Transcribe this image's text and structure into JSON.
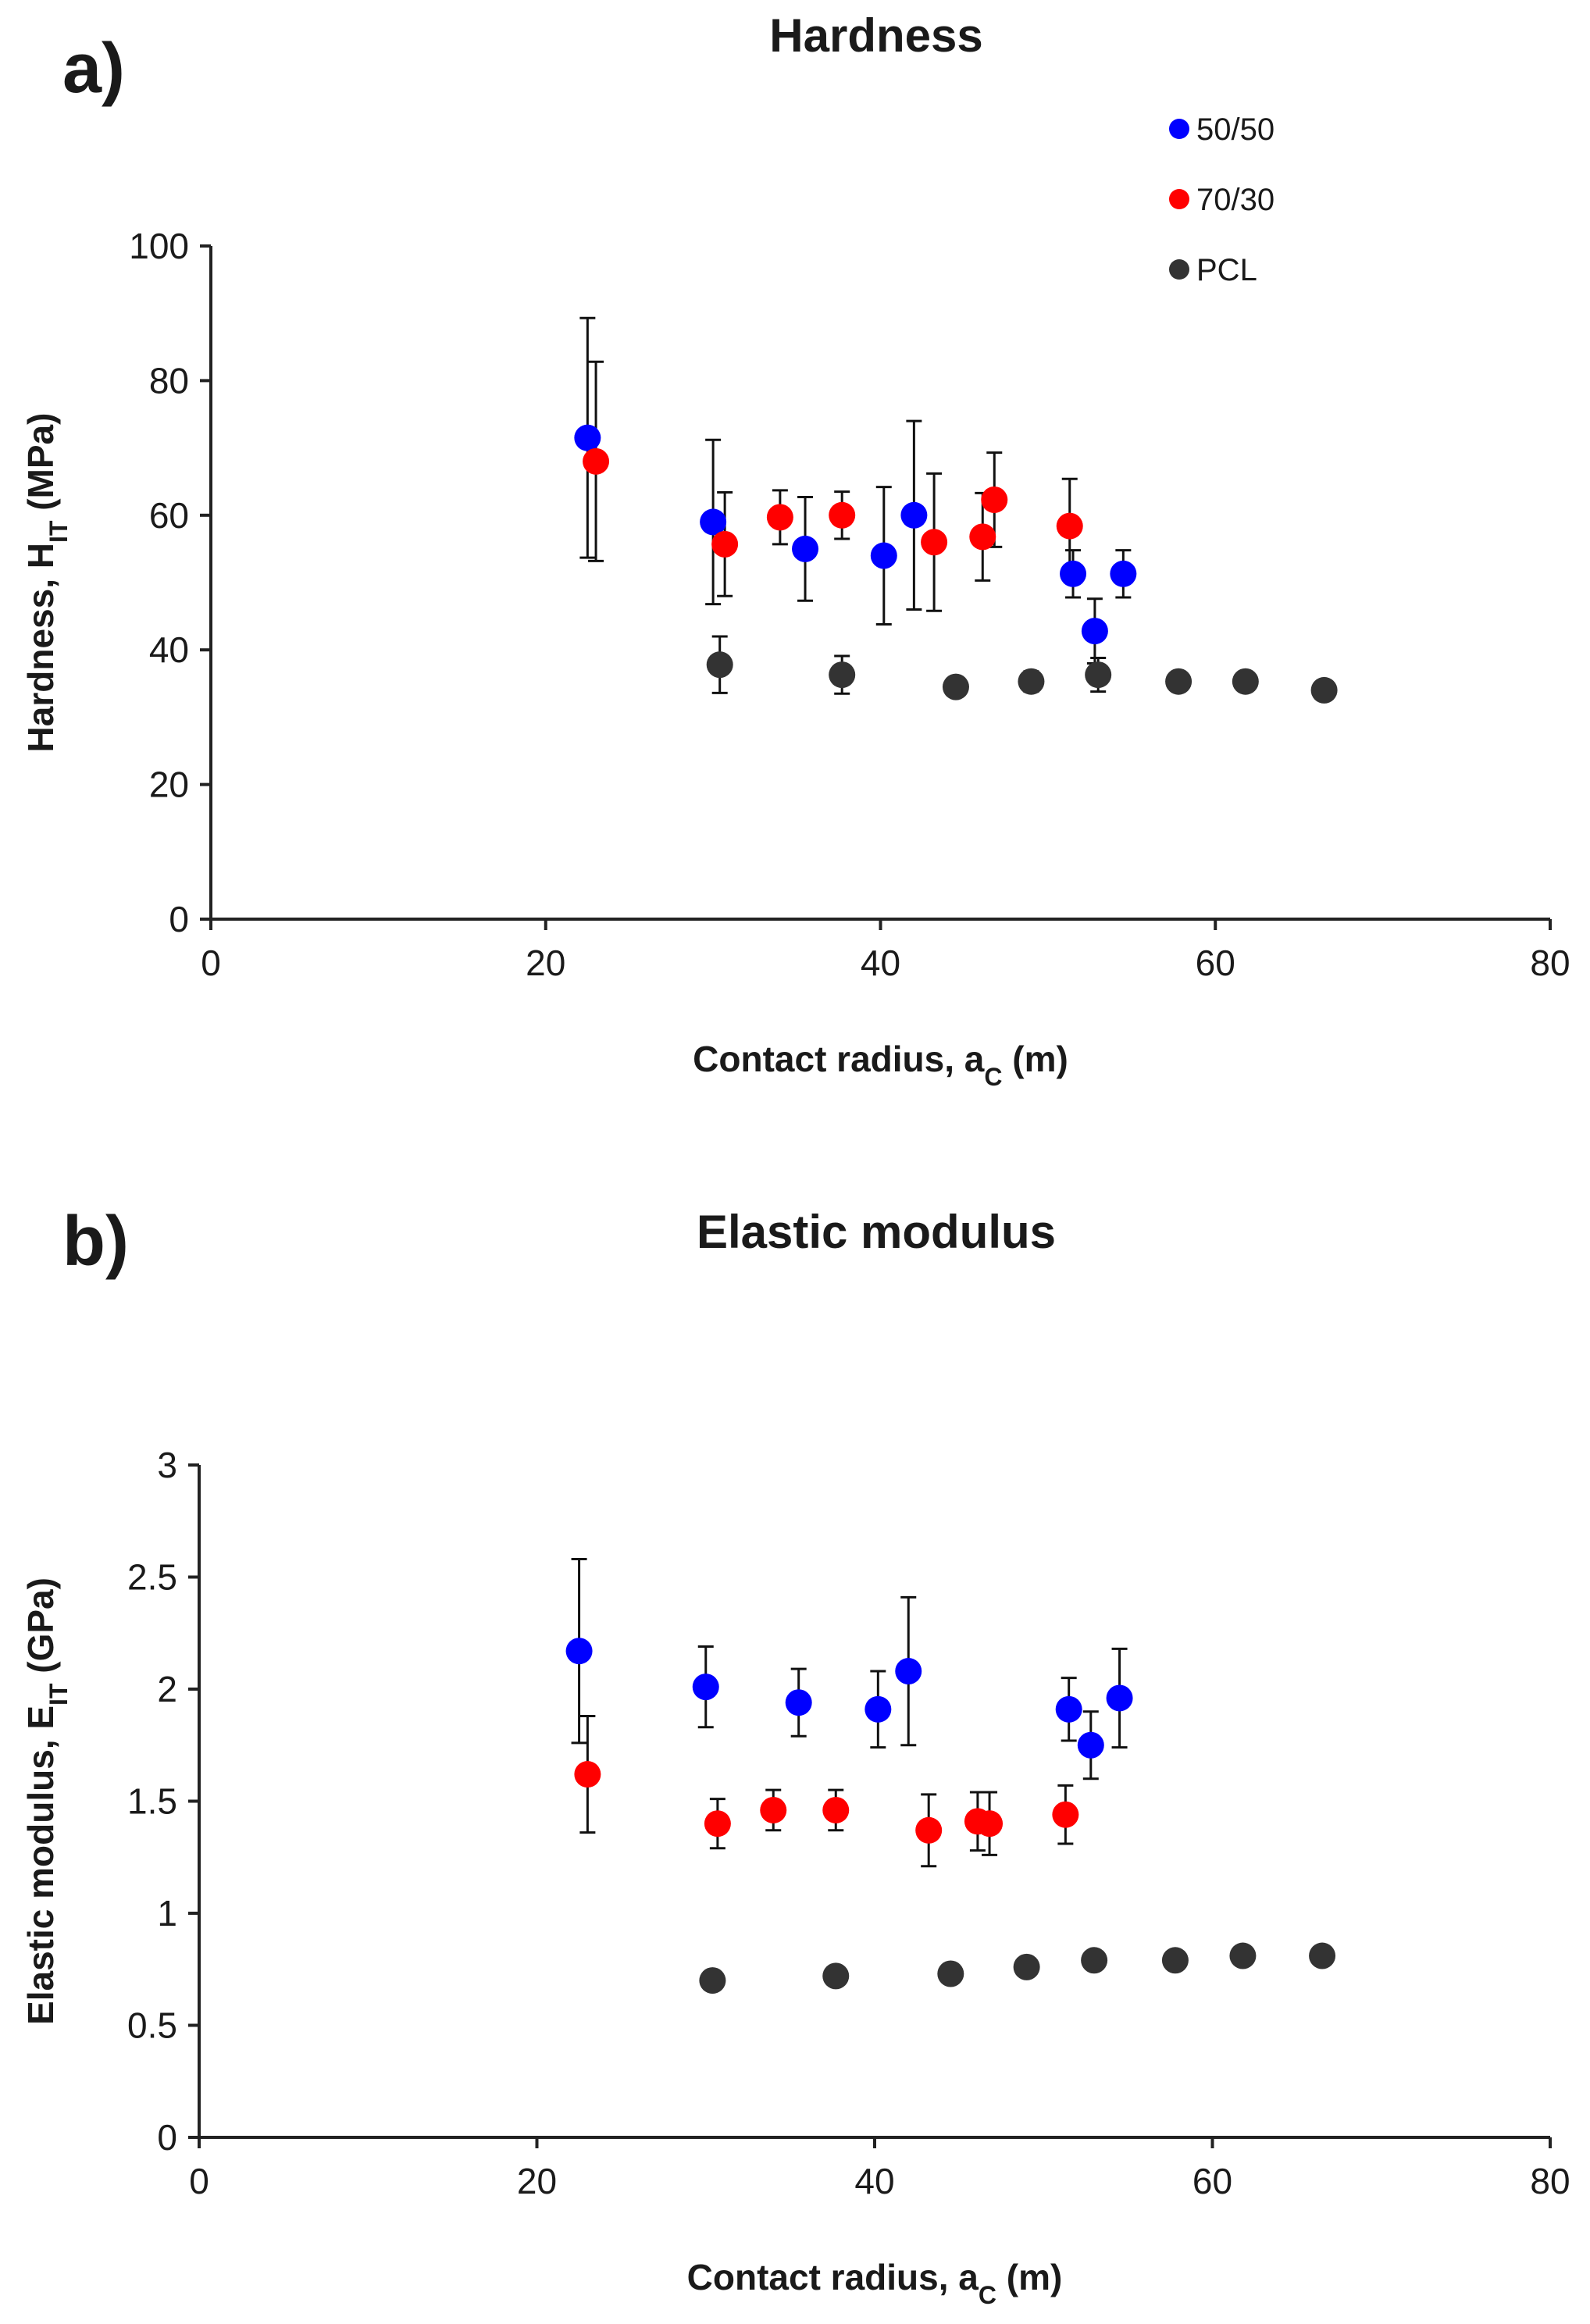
{
  "figure": {
    "panels": [
      "a)",
      "b)"
    ]
  },
  "chart_data": [
    {
      "type": "scatter",
      "panel": "a)",
      "title": "Hardness",
      "xlabel": {
        "text": "Contact radius, a",
        "sub": "C",
        "suffix": " (m)"
      },
      "ylabel": {
        "text": "Hardness, H",
        "sub": "IT",
        "suffix": " (MPa)"
      },
      "xlim": [
        0,
        80
      ],
      "ylim": [
        0,
        100
      ],
      "xticks": [
        0,
        20,
        40,
        60,
        80
      ],
      "yticks": [
        0,
        20,
        40,
        60,
        80,
        100
      ],
      "grid": false,
      "legend_position": "top-right",
      "series": [
        {
          "name": "50/50",
          "color": "#0000ff",
          "points": [
            {
              "x": 22.5,
              "y": 71.5,
              "err": 17.8
            },
            {
              "x": 30.0,
              "y": 59.0,
              "err": 12.2
            },
            {
              "x": 35.5,
              "y": 55.0,
              "err": 7.7
            },
            {
              "x": 40.2,
              "y": 54.0,
              "err": 10.2
            },
            {
              "x": 42.0,
              "y": 60.0,
              "err": 14.0
            },
            {
              "x": 51.5,
              "y": 51.3,
              "err": 3.5
            },
            {
              "x": 52.8,
              "y": 42.8,
              "err": 4.8
            },
            {
              "x": 54.5,
              "y": 51.3,
              "err": 3.5
            }
          ]
        },
        {
          "name": "70/30",
          "color": "#ff0000",
          "points": [
            {
              "x": 23.0,
              "y": 68.0,
              "err": 14.8
            },
            {
              "x": 30.7,
              "y": 55.7,
              "err": 7.7
            },
            {
              "x": 34.0,
              "y": 59.7,
              "err": 4.0
            },
            {
              "x": 37.7,
              "y": 60.0,
              "err": 3.5
            },
            {
              "x": 43.2,
              "y": 56.0,
              "err": 10.2
            },
            {
              "x": 46.1,
              "y": 56.8,
              "err": 6.5
            },
            {
              "x": 46.8,
              "y": 62.3,
              "err": 7.0
            },
            {
              "x": 51.3,
              "y": 58.4,
              "err": 7.0
            }
          ]
        },
        {
          "name": "PCL",
          "color": "#333333",
          "points": [
            {
              "x": 30.4,
              "y": 37.8,
              "err": 4.2
            },
            {
              "x": 37.7,
              "y": 36.3,
              "err": 2.8
            },
            {
              "x": 44.5,
              "y": 34.5,
              "err": 0
            },
            {
              "x": 49.0,
              "y": 35.3,
              "err": 1.5
            },
            {
              "x": 53.0,
              "y": 36.3,
              "err": 2.5
            },
            {
              "x": 57.8,
              "y": 35.3,
              "err": 0
            },
            {
              "x": 61.8,
              "y": 35.3,
              "err": 0
            },
            {
              "x": 66.5,
              "y": 34.0,
              "err": 0
            }
          ]
        }
      ]
    },
    {
      "type": "scatter",
      "panel": "b)",
      "title": "Elastic modulus",
      "xlabel": {
        "text": "Contact radius, a",
        "sub": "C",
        "suffix": " (m)"
      },
      "ylabel": {
        "text": "Elastic modulus, E",
        "sub": "IT",
        "suffix": " (GPa)"
      },
      "xlim": [
        0,
        80
      ],
      "ylim": [
        0,
        3
      ],
      "xticks": [
        0,
        20,
        40,
        60,
        80
      ],
      "yticks": [
        0,
        0.5,
        1,
        1.5,
        2,
        2.5,
        3
      ],
      "grid": false,
      "series": [
        {
          "name": "50/50",
          "color": "#0000ff",
          "points": [
            {
              "x": 22.5,
              "y": 2.17,
              "err": 0.41
            },
            {
              "x": 30.0,
              "y": 2.01,
              "err": 0.18
            },
            {
              "x": 35.5,
              "y": 1.94,
              "err": 0.15
            },
            {
              "x": 40.2,
              "y": 1.91,
              "err": 0.17
            },
            {
              "x": 42.0,
              "y": 2.08,
              "err": 0.33
            },
            {
              "x": 51.5,
              "y": 1.91,
              "err": 0.14
            },
            {
              "x": 52.8,
              "y": 1.75,
              "err": 0.15
            },
            {
              "x": 54.5,
              "y": 1.96,
              "err": 0.22
            }
          ]
        },
        {
          "name": "70/30",
          "color": "#ff0000",
          "points": [
            {
              "x": 23.0,
              "y": 1.62,
              "err": 0.26
            },
            {
              "x": 30.7,
              "y": 1.4,
              "err": 0.11
            },
            {
              "x": 34.0,
              "y": 1.46,
              "err": 0.09
            },
            {
              "x": 37.7,
              "y": 1.46,
              "err": 0.09
            },
            {
              "x": 43.2,
              "y": 1.37,
              "err": 0.16
            },
            {
              "x": 46.1,
              "y": 1.41,
              "err": 0.13
            },
            {
              "x": 46.8,
              "y": 1.4,
              "err": 0.14
            },
            {
              "x": 51.3,
              "y": 1.44,
              "err": 0.13
            }
          ]
        },
        {
          "name": "PCL",
          "color": "#333333",
          "points": [
            {
              "x": 30.4,
              "y": 0.7,
              "err": 0
            },
            {
              "x": 37.7,
              "y": 0.72,
              "err": 0
            },
            {
              "x": 44.5,
              "y": 0.73,
              "err": 0
            },
            {
              "x": 49.0,
              "y": 0.76,
              "err": 0
            },
            {
              "x": 53.0,
              "y": 0.79,
              "err": 0
            },
            {
              "x": 57.8,
              "y": 0.79,
              "err": 0
            },
            {
              "x": 61.8,
              "y": 0.81,
              "err": 0
            },
            {
              "x": 66.5,
              "y": 0.81,
              "err": 0
            }
          ]
        }
      ]
    }
  ]
}
